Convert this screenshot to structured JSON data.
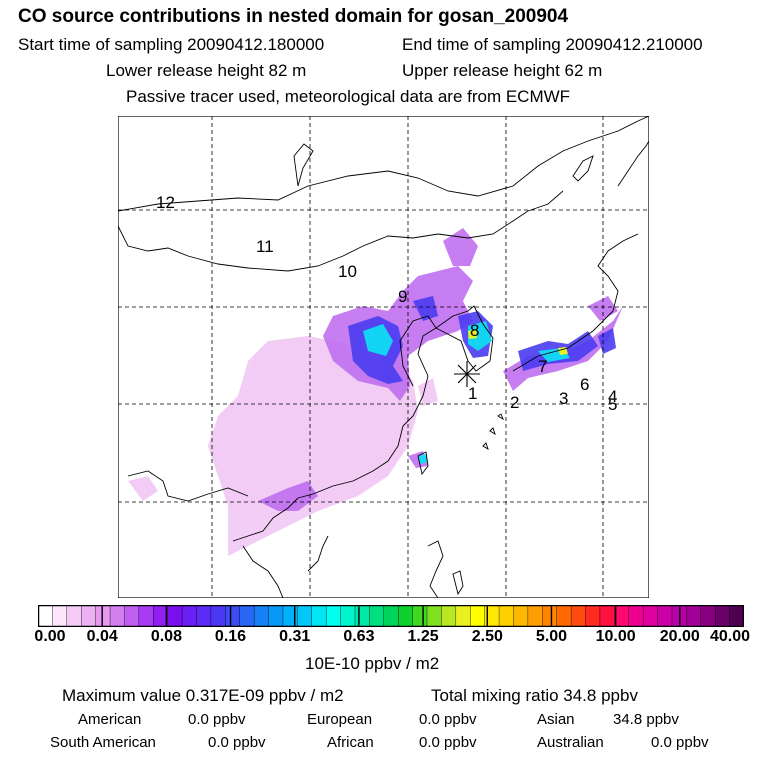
{
  "header": {
    "title": "CO  source contributions in nested domain for gosan_200904",
    "start_label": "Start time of sampling 20090412.180000",
    "end_label": "End time of sampling 20090412.210000",
    "lower_label": "Lower release height   82 m",
    "upper_label": "Upper release height   62 m",
    "note": "Passive tracer used, meteorological data are from ECMWF"
  },
  "map": {
    "region_labels": [
      "12",
      "11",
      "10",
      "9",
      "8",
      "7",
      "6",
      "5",
      "4",
      "3",
      "2",
      "1"
    ],
    "receptor_marker": "receptor-star"
  },
  "colorbar": {
    "ticks": [
      "0.00",
      "0.04",
      "0.08",
      "0.16",
      "0.31",
      "0.63",
      "1.25",
      "2.50",
      "5.00",
      "10.00",
      "20.00",
      "40.00"
    ],
    "colors": [
      "#ffffff",
      "#fbe6fb",
      "#f5ccf6",
      "#eeb2f2",
      "#e699ef",
      "#d47ff0",
      "#c060f2",
      "#a93cf3",
      "#9020f2",
      "#7a10f0",
      "#6a20f5",
      "#5a2cf5",
      "#4c36f5",
      "#3c4cf5",
      "#2a66f5",
      "#1880f5",
      "#0898f7",
      "#00b0f8",
      "#00c8f8",
      "#00e6f5",
      "#00fff0",
      "#00f5cc",
      "#00e8a8",
      "#00e080",
      "#00d45a",
      "#10d030",
      "#40d820",
      "#80e020",
      "#b8e820",
      "#e8f020",
      "#ffff00",
      "#ffe800",
      "#ffd000",
      "#ffb800",
      "#ff9e00",
      "#ff8400",
      "#ff6a00",
      "#ff4a10",
      "#ff2a20",
      "#ff1040",
      "#ff0870",
      "#f00090",
      "#e000a0",
      "#cc00a8",
      "#b800a8",
      "#a00098",
      "#880080",
      "#6a0068",
      "#500050"
    ],
    "unit": "10E-10 ppbv / m2"
  },
  "stats": {
    "maximum": "Maximum value  0.317E-09 ppbv / m2",
    "total": "Total mixing ratio       34.8 ppbv",
    "american_label": "American",
    "american_value": "0.0 ppbv",
    "european_label": "European",
    "european_value": "0.0 ppbv",
    "asian_label": "Asian",
    "asian_value": "34.8 ppbv",
    "south_american_label": "South American",
    "south_american_value": "0.0 ppbv",
    "african_label": "African",
    "african_value": "0.0 ppbv",
    "australian_label": "Australian",
    "australian_value": "0.0 ppbv"
  }
}
